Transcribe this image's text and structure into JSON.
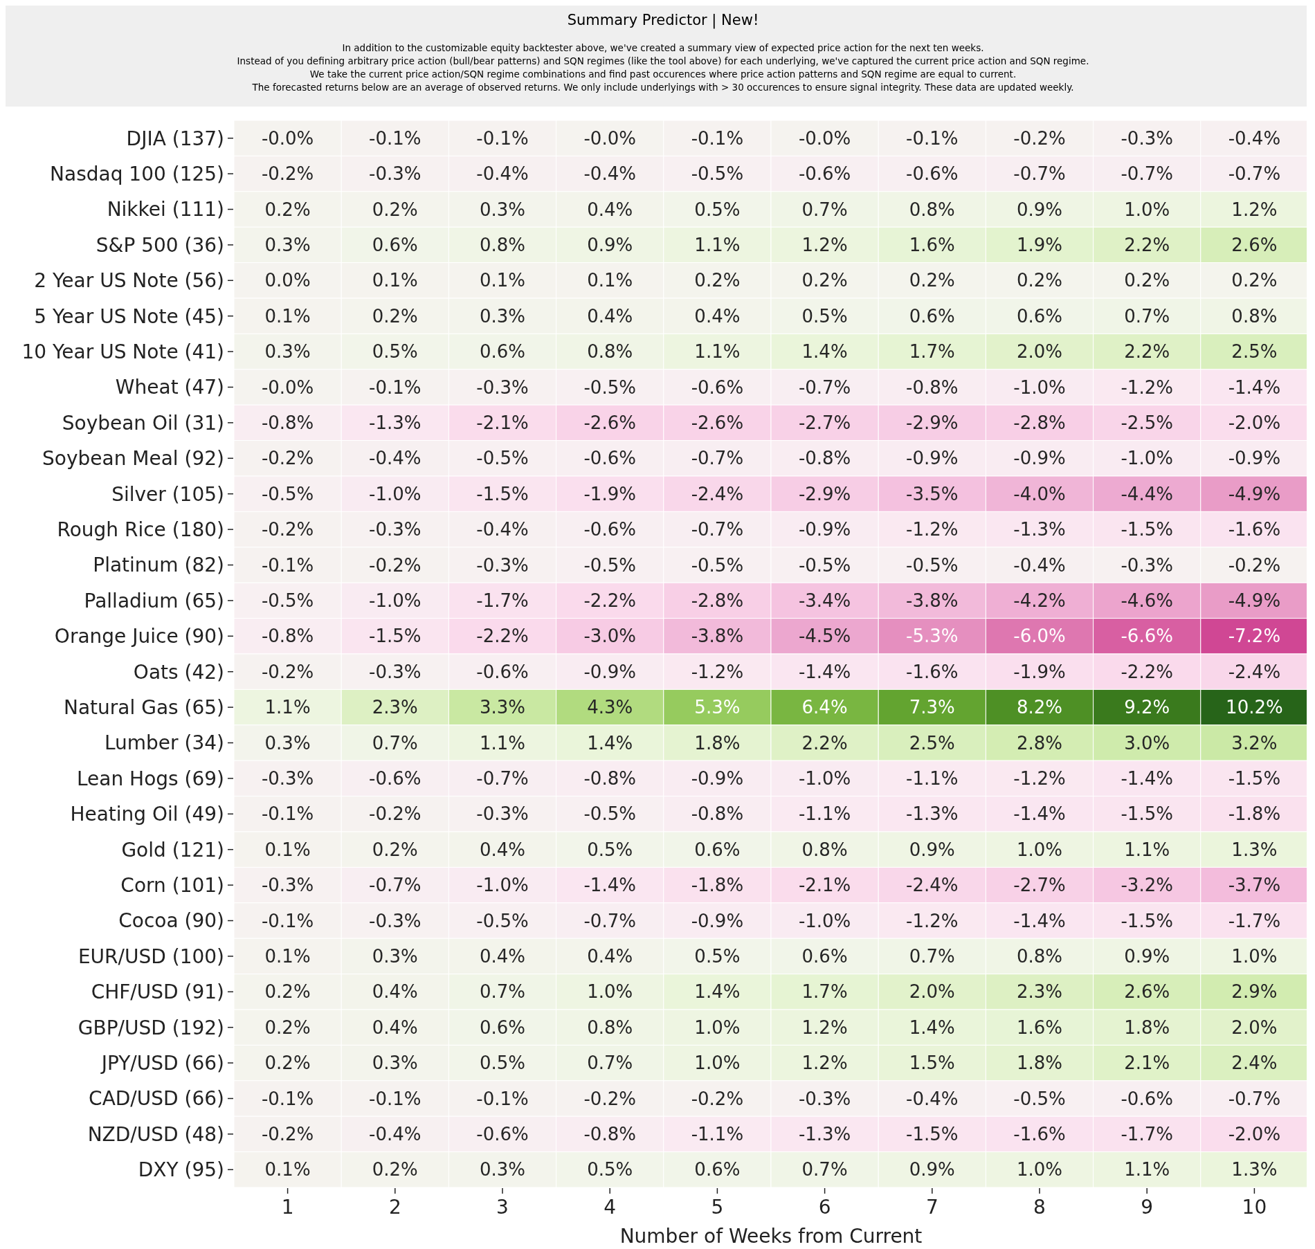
{
  "chart_data": {
    "type": "heatmap",
    "title": "Summary Predictor | New!",
    "subtitle": "In addition to the customizable equity backtester above, we've created a summary view of expected price action for the next ten weeks.\nInstead of you defining arbitrary price action (bull/bear patterns) and SQN regimes (like the tool above) for each underlying, we've captured the current price action and SQN regime.\nWe take the current price action/SQN regime combinations and find past occurences where price action patterns and SQN regime are equal to current.\nThe forecasted returns below are an average of observed returns. We only include underlyings with > 30 occurences to ensure signal integrity. These data are updated weekly.",
    "xlabel": "Number of Weeks from Current",
    "categories": [
      "1",
      "2",
      "3",
      "4",
      "5",
      "6",
      "7",
      "8",
      "9",
      "10"
    ],
    "y_categories": [
      "DJIA (137)",
      "Nasdaq 100 (125)",
      "Nikkei (111)",
      "S&P 500 (36)",
      "2 Year US Note (56)",
      "5 Year US Note (45)",
      "10 Year US Note (41)",
      "Wheat (47)",
      "Soybean Oil (31)",
      "Soybean Meal (92)",
      "Silver (105)",
      "Rough Rice (180)",
      "Platinum (82)",
      "Palladium (65)",
      "Orange Juice (90)",
      "Oats (42)",
      "Natural Gas (65)",
      "Lumber (34)",
      "Lean Hogs (69)",
      "Heating Oil (49)",
      "Gold (121)",
      "Corn (101)",
      "Cocoa (90)",
      "EUR/USD (100)",
      "CHF/USD (91)",
      "GBP/USD (192)",
      "JPY/USD (66)",
      "CAD/USD (66)",
      "NZD/USD (48)",
      "DXY (95)"
    ],
    "cells": [
      [
        -0.0,
        -0.1,
        -0.1,
        -0.0,
        -0.1,
        -0.0,
        -0.1,
        -0.2,
        -0.3,
        -0.4
      ],
      [
        -0.2,
        -0.3,
        -0.4,
        -0.4,
        -0.5,
        -0.6,
        -0.6,
        -0.7,
        -0.7,
        -0.7
      ],
      [
        0.2,
        0.2,
        0.3,
        0.4,
        0.5,
        0.7,
        0.8,
        0.9,
        1.0,
        1.2
      ],
      [
        0.3,
        0.6,
        0.8,
        0.9,
        1.1,
        1.2,
        1.6,
        1.9,
        2.2,
        2.6
      ],
      [
        0.0,
        0.1,
        0.1,
        0.1,
        0.2,
        0.2,
        0.2,
        0.2,
        0.2,
        0.2
      ],
      [
        0.1,
        0.2,
        0.3,
        0.4,
        0.4,
        0.5,
        0.6,
        0.6,
        0.7,
        0.8
      ],
      [
        0.3,
        0.5,
        0.6,
        0.8,
        1.1,
        1.4,
        1.7,
        2.0,
        2.2,
        2.5
      ],
      [
        -0.0,
        -0.1,
        -0.3,
        -0.5,
        -0.6,
        -0.7,
        -0.8,
        -1.0,
        -1.2,
        -1.4
      ],
      [
        -0.8,
        -1.3,
        -2.1,
        -2.6,
        -2.6,
        -2.7,
        -2.9,
        -2.8,
        -2.5,
        -2.0
      ],
      [
        -0.2,
        -0.4,
        -0.5,
        -0.6,
        -0.7,
        -0.8,
        -0.9,
        -0.9,
        -1.0,
        -0.9
      ],
      [
        -0.5,
        -1.0,
        -1.5,
        -1.9,
        -2.4,
        -2.9,
        -3.5,
        -4.0,
        -4.4,
        -4.9
      ],
      [
        -0.2,
        -0.3,
        -0.4,
        -0.6,
        -0.7,
        -0.9,
        -1.2,
        -1.3,
        -1.5,
        -1.6
      ],
      [
        -0.1,
        -0.2,
        -0.3,
        -0.5,
        -0.5,
        -0.5,
        -0.5,
        -0.4,
        -0.3,
        -0.2
      ],
      [
        -0.5,
        -1.0,
        -1.7,
        -2.2,
        -2.8,
        -3.4,
        -3.8,
        -4.2,
        -4.6,
        -4.9
      ],
      [
        -0.8,
        -1.5,
        -2.2,
        -3.0,
        -3.8,
        -4.5,
        -5.3,
        -6.0,
        -6.6,
        -7.2
      ],
      [
        -0.2,
        -0.3,
        -0.6,
        -0.9,
        -1.2,
        -1.4,
        -1.6,
        -1.9,
        -2.2,
        -2.4
      ],
      [
        1.1,
        2.3,
        3.3,
        4.3,
        5.3,
        6.4,
        7.3,
        8.2,
        9.2,
        10.2
      ],
      [
        0.3,
        0.7,
        1.1,
        1.4,
        1.8,
        2.2,
        2.5,
        2.8,
        3.0,
        3.2
      ],
      [
        -0.3,
        -0.6,
        -0.7,
        -0.8,
        -0.9,
        -1.0,
        -1.1,
        -1.2,
        -1.4,
        -1.5
      ],
      [
        -0.1,
        -0.2,
        -0.3,
        -0.5,
        -0.8,
        -1.1,
        -1.3,
        -1.4,
        -1.5,
        -1.8
      ],
      [
        0.1,
        0.2,
        0.4,
        0.5,
        0.6,
        0.8,
        0.9,
        1.0,
        1.1,
        1.3
      ],
      [
        -0.3,
        -0.7,
        -1.0,
        -1.4,
        -1.8,
        -2.1,
        -2.4,
        -2.7,
        -3.2,
        -3.7
      ],
      [
        -0.1,
        -0.3,
        -0.5,
        -0.7,
        -0.9,
        -1.0,
        -1.2,
        -1.4,
        -1.5,
        -1.7
      ],
      [
        0.1,
        0.3,
        0.4,
        0.4,
        0.5,
        0.6,
        0.7,
        0.8,
        0.9,
        1.0
      ],
      [
        0.2,
        0.4,
        0.7,
        1.0,
        1.4,
        1.7,
        2.0,
        2.3,
        2.6,
        2.9
      ],
      [
        0.2,
        0.4,
        0.6,
        0.8,
        1.0,
        1.2,
        1.4,
        1.6,
        1.8,
        2.0
      ],
      [
        0.2,
        0.3,
        0.5,
        0.7,
        1.0,
        1.2,
        1.5,
        1.8,
        2.1,
        2.4
      ],
      [
        -0.1,
        -0.1,
        -0.1,
        -0.2,
        -0.2,
        -0.3,
        -0.4,
        -0.5,
        -0.6,
        -0.7
      ],
      [
        -0.2,
        -0.4,
        -0.6,
        -0.8,
        -1.1,
        -1.3,
        -1.5,
        -1.6,
        -1.7,
        -2.0
      ],
      [
        0.1,
        0.2,
        0.3,
        0.5,
        0.6,
        0.7,
        0.9,
        1.0,
        1.1,
        1.3
      ]
    ],
    "cell_labels": [
      [
        "-0.0%",
        "-0.1%",
        "-0.1%",
        "-0.0%",
        "-0.1%",
        "-0.0%",
        "-0.1%",
        "-0.2%",
        "-0.3%",
        "-0.4%"
      ],
      [
        "-0.2%",
        "-0.3%",
        "-0.4%",
        "-0.4%",
        "-0.5%",
        "-0.6%",
        "-0.6%",
        "-0.7%",
        "-0.7%",
        "-0.7%"
      ],
      [
        "0.2%",
        "0.2%",
        "0.3%",
        "0.4%",
        "0.5%",
        "0.7%",
        "0.8%",
        "0.9%",
        "1.0%",
        "1.2%"
      ],
      [
        "0.3%",
        "0.6%",
        "0.8%",
        "0.9%",
        "1.1%",
        "1.2%",
        "1.6%",
        "1.9%",
        "2.2%",
        "2.6%"
      ],
      [
        "0.0%",
        "0.1%",
        "0.1%",
        "0.1%",
        "0.2%",
        "0.2%",
        "0.2%",
        "0.2%",
        "0.2%",
        "0.2%"
      ],
      [
        "0.1%",
        "0.2%",
        "0.3%",
        "0.4%",
        "0.4%",
        "0.5%",
        "0.6%",
        "0.6%",
        "0.7%",
        "0.8%"
      ],
      [
        "0.3%",
        "0.5%",
        "0.6%",
        "0.8%",
        "1.1%",
        "1.4%",
        "1.7%",
        "2.0%",
        "2.2%",
        "2.5%"
      ],
      [
        "-0.0%",
        "-0.1%",
        "-0.3%",
        "-0.5%",
        "-0.6%",
        "-0.7%",
        "-0.8%",
        "-1.0%",
        "-1.2%",
        "-1.4%"
      ],
      [
        "-0.8%",
        "-1.3%",
        "-2.1%",
        "-2.6%",
        "-2.6%",
        "-2.7%",
        "-2.9%",
        "-2.8%",
        "-2.5%",
        "-2.0%"
      ],
      [
        "-0.2%",
        "-0.4%",
        "-0.5%",
        "-0.6%",
        "-0.7%",
        "-0.8%",
        "-0.9%",
        "-0.9%",
        "-1.0%",
        "-0.9%"
      ],
      [
        "-0.5%",
        "-1.0%",
        "-1.5%",
        "-1.9%",
        "-2.4%",
        "-2.9%",
        "-3.5%",
        "-4.0%",
        "-4.4%",
        "-4.9%"
      ],
      [
        "-0.2%",
        "-0.3%",
        "-0.4%",
        "-0.6%",
        "-0.7%",
        "-0.9%",
        "-1.2%",
        "-1.3%",
        "-1.5%",
        "-1.6%"
      ],
      [
        "-0.1%",
        "-0.2%",
        "-0.3%",
        "-0.5%",
        "-0.5%",
        "-0.5%",
        "-0.5%",
        "-0.4%",
        "-0.3%",
        "-0.2%"
      ],
      [
        "-0.5%",
        "-1.0%",
        "-1.7%",
        "-2.2%",
        "-2.8%",
        "-3.4%",
        "-3.8%",
        "-4.2%",
        "-4.6%",
        "-4.9%"
      ],
      [
        "-0.8%",
        "-1.5%",
        "-2.2%",
        "-3.0%",
        "-3.8%",
        "-4.5%",
        "-5.3%",
        "-6.0%",
        "-6.6%",
        "-7.2%"
      ],
      [
        "-0.2%",
        "-0.3%",
        "-0.6%",
        "-0.9%",
        "-1.2%",
        "-1.4%",
        "-1.6%",
        "-1.9%",
        "-2.2%",
        "-2.4%"
      ],
      [
        "1.1%",
        "2.3%",
        "3.3%",
        "4.3%",
        "5.3%",
        "6.4%",
        "7.3%",
        "8.2%",
        "9.2%",
        "10.2%"
      ],
      [
        "0.3%",
        "0.7%",
        "1.1%",
        "1.4%",
        "1.8%",
        "2.2%",
        "2.5%",
        "2.8%",
        "3.0%",
        "3.2%"
      ],
      [
        "-0.3%",
        "-0.6%",
        "-0.7%",
        "-0.8%",
        "-0.9%",
        "-1.0%",
        "-1.1%",
        "-1.2%",
        "-1.4%",
        "-1.5%"
      ],
      [
        "-0.1%",
        "-0.2%",
        "-0.3%",
        "-0.5%",
        "-0.8%",
        "-1.1%",
        "-1.3%",
        "-1.4%",
        "-1.5%",
        "-1.8%"
      ],
      [
        "0.1%",
        "0.2%",
        "0.4%",
        "0.5%",
        "0.6%",
        "0.8%",
        "0.9%",
        "1.0%",
        "1.1%",
        "1.3%"
      ],
      [
        "-0.3%",
        "-0.7%",
        "-1.0%",
        "-1.4%",
        "-1.8%",
        "-2.1%",
        "-2.4%",
        "-2.7%",
        "-3.2%",
        "-3.7%"
      ],
      [
        "-0.1%",
        "-0.3%",
        "-0.5%",
        "-0.7%",
        "-0.9%",
        "-1.0%",
        "-1.2%",
        "-1.4%",
        "-1.5%",
        "-1.7%"
      ],
      [
        "0.1%",
        "0.3%",
        "0.4%",
        "0.4%",
        "0.5%",
        "0.6%",
        "0.7%",
        "0.8%",
        "0.9%",
        "1.0%"
      ],
      [
        "0.2%",
        "0.4%",
        "0.7%",
        "1.0%",
        "1.4%",
        "1.7%",
        "2.0%",
        "2.3%",
        "2.6%",
        "2.9%"
      ],
      [
        "0.2%",
        "0.4%",
        "0.6%",
        "0.8%",
        "1.0%",
        "1.2%",
        "1.4%",
        "1.6%",
        "1.8%",
        "2.0%"
      ],
      [
        "0.2%",
        "0.3%",
        "0.5%",
        "0.7%",
        "1.0%",
        "1.2%",
        "1.5%",
        "1.8%",
        "2.1%",
        "2.4%"
      ],
      [
        "-0.1%",
        "-0.1%",
        "-0.1%",
        "-0.2%",
        "-0.2%",
        "-0.3%",
        "-0.4%",
        "-0.5%",
        "-0.6%",
        "-0.7%"
      ],
      [
        "-0.2%",
        "-0.4%",
        "-0.6%",
        "-0.8%",
        "-1.1%",
        "-1.3%",
        "-1.5%",
        "-1.6%",
        "-1.7%",
        "-2.0%"
      ],
      [
        "0.1%",
        "0.2%",
        "0.3%",
        "0.5%",
        "0.6%",
        "0.7%",
        "0.9%",
        "1.0%",
        "1.1%",
        "1.3%"
      ]
    ]
  }
}
